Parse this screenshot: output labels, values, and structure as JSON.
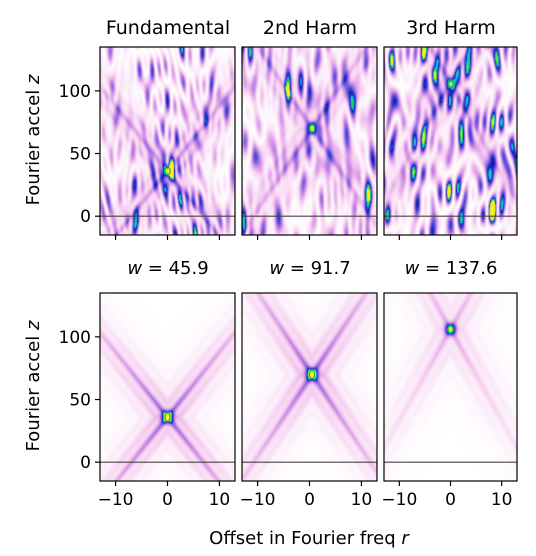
{
  "chart_data": {
    "type": "heatmap",
    "column_titles": [
      "Fundamental",
      "2nd Harm",
      "3rd Harm"
    ],
    "w_labels": [
      {
        "var": "w",
        "value": "45.9"
      },
      {
        "var": "w",
        "value": "91.7"
      },
      {
        "var": "w",
        "value": "137.6"
      }
    ],
    "ylabel": {
      "text": "Fourier accel ",
      "var": "z"
    },
    "xlabel": {
      "text": "Offset in Fourier freq ",
      "var": "r"
    },
    "xlim": [
      -13,
      13
    ],
    "ylim": [
      -15,
      135
    ],
    "xticks": [
      -10,
      0,
      10
    ],
    "yticks": [
      0,
      50,
      100
    ],
    "xtick_labels": [
      "−10",
      "0",
      "10"
    ],
    "ytick_labels": [
      "0",
      "50",
      "100"
    ],
    "baseline_z": 0,
    "rows": [
      "observed",
      "model"
    ],
    "peaks": [
      {
        "harmonic": 1,
        "r": 0,
        "z": 36
      },
      {
        "harmonic": 2,
        "r": 0.5,
        "z": 70
      },
      {
        "harmonic": 3,
        "r": 0,
        "z": 106
      }
    ],
    "colormap": "white-pink-blue-cyan-green-yellow"
  }
}
